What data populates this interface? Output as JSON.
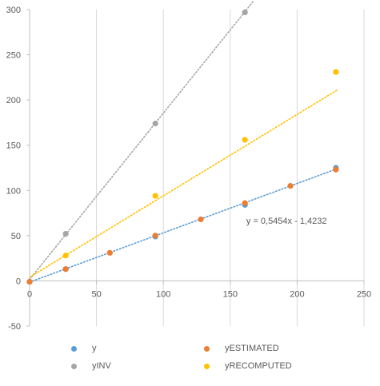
{
  "chart_data": {
    "type": "scatter",
    "xlim": [
      0,
      250
    ],
    "ylim": [
      -50,
      300
    ],
    "x_ticks": [
      0,
      50,
      100,
      150,
      200,
      250
    ],
    "y_ticks": [
      -50,
      0,
      50,
      100,
      150,
      200,
      250,
      300
    ],
    "x_tick_labels": [
      "0",
      "50",
      "100",
      "150",
      "200",
      "250"
    ],
    "y_tick_labels": [
      "-50",
      "0",
      "50",
      "100",
      "150",
      "200",
      "250",
      "300"
    ],
    "grid": "vertical",
    "legend_position": "bottom",
    "series": [
      {
        "name": "y",
        "color": "#5B9BD5",
        "points": [
          [
            0,
            -1
          ],
          [
            27,
            13
          ],
          [
            94,
            49
          ],
          [
            161,
            84
          ],
          [
            229,
            125
          ]
        ],
        "trendline": {
          "slope": 0.5454,
          "intercept": -1.4232
        },
        "trendline_label": "y = 0,5454x - 1,4232"
      },
      {
        "name": "yINV",
        "color": "#A5A5A5",
        "points": [
          [
            27,
            52
          ],
          [
            94,
            174
          ],
          [
            161,
            297
          ]
        ],
        "trendline": {
          "slope": 1.84,
          "intercept": 1.5
        }
      },
      {
        "name": "yESTIMATED",
        "color": "#ED7D31",
        "points": [
          [
            0,
            -1
          ],
          [
            27,
            13
          ],
          [
            60,
            31
          ],
          [
            94,
            50
          ],
          [
            128,
            68
          ],
          [
            161,
            86
          ],
          [
            195,
            105
          ],
          [
            229,
            123
          ]
        ]
      },
      {
        "name": "yRECOMPUTED",
        "color": "#FFC000",
        "points": [
          [
            27,
            28
          ],
          [
            94,
            94
          ],
          [
            161,
            156
          ],
          [
            229,
            231
          ]
        ],
        "trendline": {
          "slope": 0.9,
          "intercept": 4
        }
      }
    ]
  }
}
